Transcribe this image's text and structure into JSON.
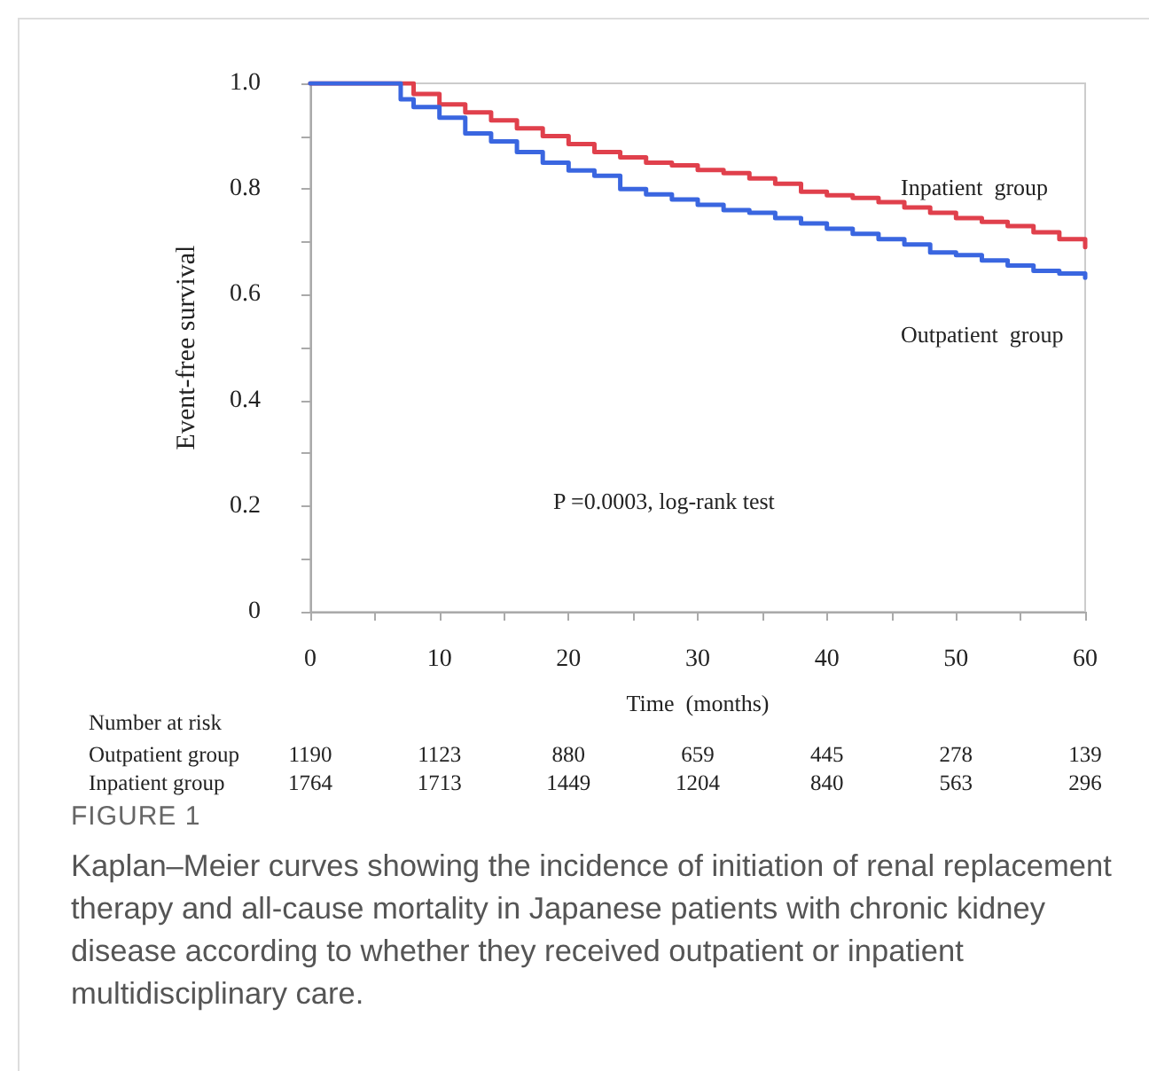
{
  "chart_data": {
    "type": "step",
    "xlabel": "Time  (months)",
    "ylabel": "Event-free survival",
    "xlim": [
      0,
      60
    ],
    "ylim": [
      0,
      1
    ],
    "xticks": [
      0,
      {
        "value": 5,
        "label": null
      },
      10,
      {
        "value": 15,
        "label": null
      },
      20,
      {
        "value": 25,
        "label": null
      },
      30,
      {
        "value": 35,
        "label": null
      },
      40,
      {
        "value": 45,
        "label": null
      },
      50,
      {
        "value": 55,
        "label": null
      },
      60
    ],
    "yticks": [
      {
        "value": 0,
        "label": "0"
      },
      {
        "value": 0.1,
        "label": null
      },
      0.2,
      {
        "value": 0.3,
        "label": null
      },
      0.4,
      {
        "value": 0.5,
        "label": null
      },
      0.6,
      {
        "value": 0.7,
        "label": null
      },
      0.8,
      {
        "value": 0.9,
        "label": null
      },
      {
        "value": 1,
        "label": "1.0"
      }
    ],
    "grid": false,
    "legend": false,
    "marker": "none",
    "line_style": "solid",
    "series": [
      {
        "name": "Inpatient  group",
        "color": "#e0404c",
        "x": [
          0,
          8,
          10,
          12,
          14,
          16,
          18,
          20,
          22,
          24,
          26,
          28,
          30,
          32,
          34,
          36,
          38,
          40,
          42,
          44,
          46,
          48,
          50,
          52,
          54,
          56,
          58,
          60
        ],
        "values": [
          1,
          0.98,
          0.96,
          0.945,
          0.93,
          0.915,
          0.9,
          0.885,
          0.87,
          0.86,
          0.85,
          0.845,
          0.836,
          0.83,
          0.82,
          0.81,
          0.795,
          0.788,
          0.783,
          0.775,
          0.765,
          0.755,
          0.745,
          0.738,
          0.73,
          0.718,
          0.705,
          0.69
        ]
      },
      {
        "name": "Outpatient  group",
        "color": "#3a66e0",
        "x": [
          0,
          6,
          7,
          8,
          10,
          12,
          14,
          16,
          18,
          20,
          22,
          24,
          26,
          28,
          30,
          32,
          34,
          36,
          38,
          40,
          42,
          44,
          46,
          48,
          50,
          52,
          54,
          56,
          58,
          60
        ],
        "values": [
          1,
          1,
          0.97,
          0.955,
          0.935,
          0.905,
          0.89,
          0.87,
          0.85,
          0.835,
          0.825,
          0.8,
          0.79,
          0.78,
          0.77,
          0.76,
          0.755,
          0.745,
          0.735,
          0.725,
          0.715,
          0.705,
          0.695,
          0.68,
          0.675,
          0.665,
          0.655,
          0.645,
          0.64,
          0.632
        ]
      }
    ],
    "annotations": [
      "P =0.0003, log-rank test",
      "Number at risk",
      "Outpatient group",
      "1190",
      "1123",
      "880",
      "659",
      "445",
      "278",
      "139",
      "Inpatient group",
      "1764",
      "1713",
      "1449",
      "1204",
      "840",
      "563",
      "296",
      "FIGURE 1",
      "Kaplan–Meier curves showing the incidence of initiation of renal replacement therapy and all-cause mortality in Japanese patients with chronic kidney disease according to whether they received outpatient or inpatient multidisciplinary care."
    ]
  }
}
